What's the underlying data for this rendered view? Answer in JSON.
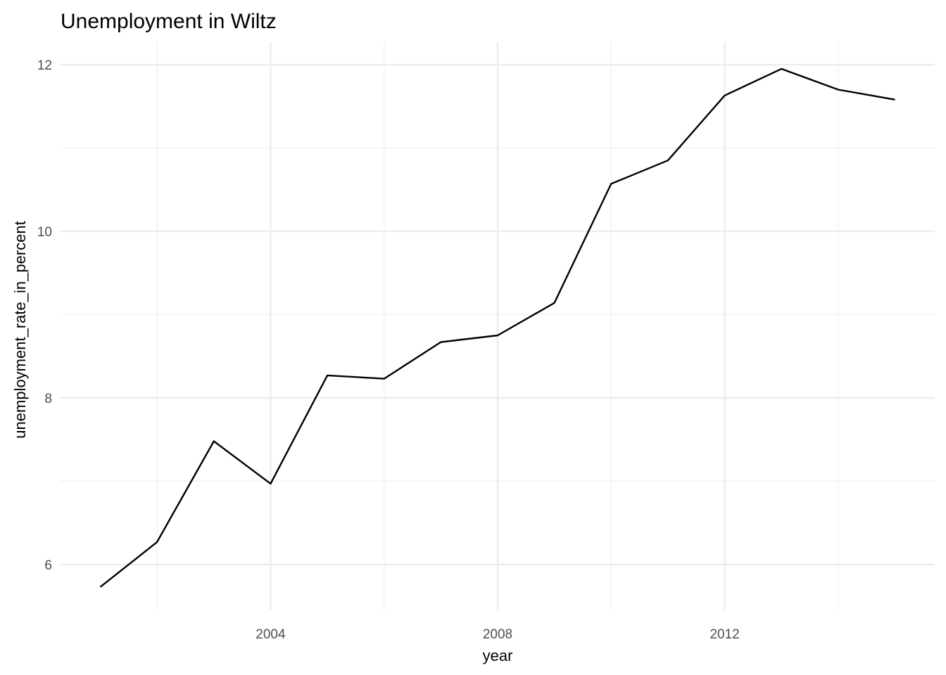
{
  "chart_data": {
    "type": "line",
    "title": "Unemployment in Wiltz",
    "xlabel": "year",
    "ylabel": "unemployment_rate_in_percent",
    "x": [
      2001,
      2002,
      2003,
      2004,
      2005,
      2006,
      2007,
      2008,
      2009,
      2010,
      2011,
      2012,
      2013,
      2014,
      2015
    ],
    "series": [
      {
        "values": [
          5.73,
          6.27,
          7.48,
          6.97,
          8.27,
          8.23,
          8.67,
          8.75,
          9.14,
          10.57,
          10.85,
          11.63,
          11.95,
          11.7,
          11.58
        ],
        "color": "#000000"
      }
    ],
    "xlim": [
      2000.3,
      2015.7
    ],
    "ylim": [
      5.45,
      12.27
    ],
    "x_ticks": [
      2004,
      2008,
      2012
    ],
    "x_tick_labels": [
      "2004",
      "2008",
      "2012"
    ],
    "x_minor_ticks": [
      2002,
      2006,
      2010,
      2014
    ],
    "y_ticks": [
      6,
      8,
      10,
      12
    ],
    "y_tick_labels": [
      "6",
      "8",
      "10",
      "12"
    ],
    "y_minor_ticks": [
      7,
      9,
      11
    ],
    "grid": true,
    "legend": "none"
  }
}
